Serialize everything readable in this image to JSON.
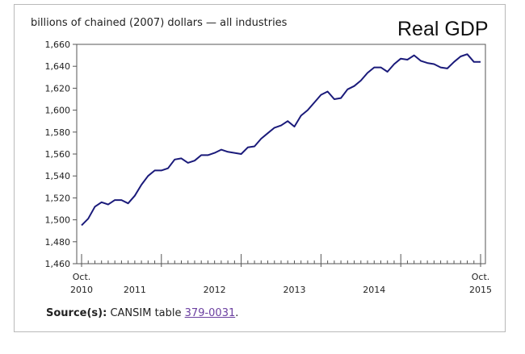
{
  "chart_data": {
    "type": "line",
    "title": "Real GDP",
    "ylabel": "billions of chained (2007) dollars — all industries",
    "xlabel": "",
    "ylim": [
      1460,
      1660
    ],
    "yticks": [
      1460,
      1480,
      1500,
      1520,
      1540,
      1560,
      1580,
      1600,
      1620,
      1640,
      1660
    ],
    "ytick_labels": [
      "1,460",
      "1,480",
      "1,500",
      "1,520",
      "1,540",
      "1,560",
      "1,580",
      "1,600",
      "1,620",
      "1,640",
      "1,660"
    ],
    "x_range": [
      "2010-10",
      "2015-10"
    ],
    "x_labels": [
      {
        "x": "2010-10",
        "line1": "Oct.",
        "line2": "2010"
      },
      {
        "x": "2011-06",
        "line1": "",
        "line2": "2011"
      },
      {
        "x": "2012-06",
        "line1": "",
        "line2": "2012"
      },
      {
        "x": "2013-06",
        "line1": "",
        "line2": "2013"
      },
      {
        "x": "2014-06",
        "line1": "",
        "line2": "2014"
      },
      {
        "x": "2015-10",
        "line1": "Oct.",
        "line2": "2015"
      }
    ],
    "grid": false,
    "line_color": "#1a1a7a",
    "series": [
      {
        "x": [
          "2010-10",
          "2010-11",
          "2010-12",
          "2011-01",
          "2011-02",
          "2011-03",
          "2011-04",
          "2011-05",
          "2011-06",
          "2011-07",
          "2011-08",
          "2011-09",
          "2011-10",
          "2011-11",
          "2011-12",
          "2012-01",
          "2012-02",
          "2012-03",
          "2012-04",
          "2012-05",
          "2012-06",
          "2012-07",
          "2012-08",
          "2012-09",
          "2012-10",
          "2012-11",
          "2012-12",
          "2013-01",
          "2013-02",
          "2013-03",
          "2013-04",
          "2013-05",
          "2013-06",
          "2013-07",
          "2013-08",
          "2013-09",
          "2013-10",
          "2013-11",
          "2013-12",
          "2014-01",
          "2014-02",
          "2014-03",
          "2014-04",
          "2014-05",
          "2014-06",
          "2014-07",
          "2014-08",
          "2014-09",
          "2014-10",
          "2014-11",
          "2014-12",
          "2015-01",
          "2015-02",
          "2015-03",
          "2015-04",
          "2015-05",
          "2015-06",
          "2015-07",
          "2015-08",
          "2015-09",
          "2015-10"
        ],
        "values": [
          1495,
          1501,
          1512,
          1516,
          1514,
          1518,
          1518,
          1515,
          1522,
          1532,
          1540,
          1545,
          1545,
          1547,
          1555,
          1556,
          1552,
          1554,
          1559,
          1559,
          1561,
          1564,
          1562,
          1561,
          1560,
          1566,
          1567,
          1574,
          1579,
          1584,
          1586,
          1590,
          1585,
          1595,
          1600,
          1607,
          1614,
          1617,
          1610,
          1611,
          1619,
          1622,
          1627,
          1634,
          1639,
          1639,
          1635,
          1642,
          1647,
          1646,
          1650,
          1645,
          1643,
          1642,
          1639,
          1638,
          1644,
          1649,
          1651,
          1644,
          1644
        ]
      }
    ]
  },
  "source": {
    "label": "Source(s):",
    "text": "CANSIM table",
    "link": "379-0031",
    "end": "."
  }
}
